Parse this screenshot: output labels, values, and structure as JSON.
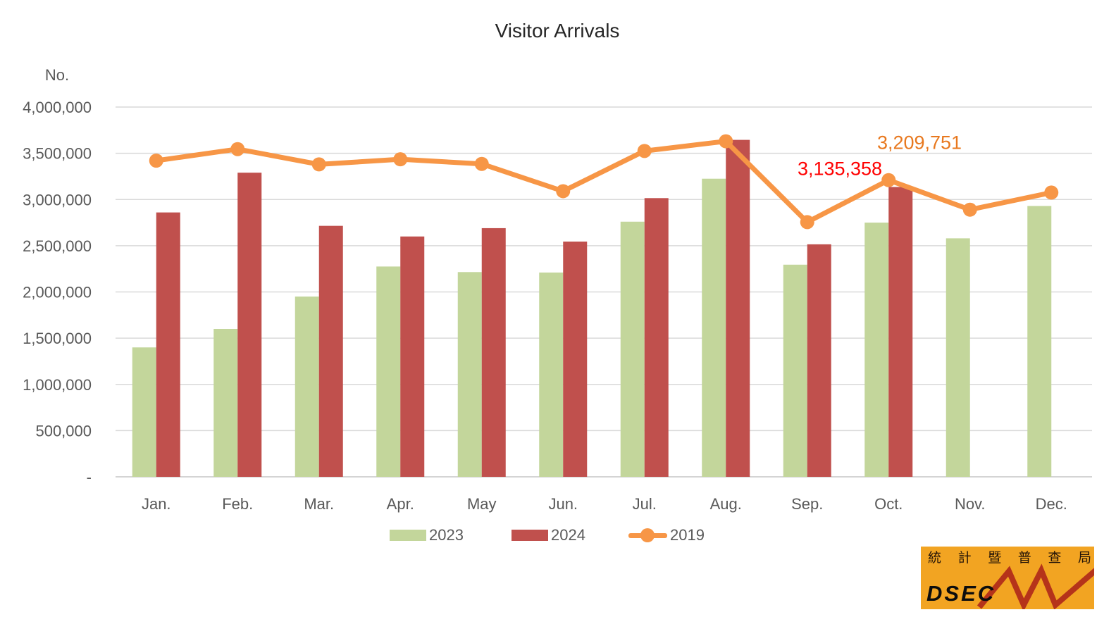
{
  "title": "Visitor Arrivals",
  "chart_data": {
    "type": "bar",
    "title": "Visitor Arrivals",
    "xlabel": "",
    "ylabel": "No.",
    "ylim": [
      0,
      4000000
    ],
    "ytick_step": 500000,
    "ytick_labels": [
      "4,000,000",
      "3,500,000",
      "3,000,000",
      "2,500,000",
      "2,000,000",
      "1,500,000",
      "1,000,000",
      "500,000",
      "-"
    ],
    "grid": true,
    "legend_position": "bottom",
    "categories": [
      "Jan.",
      "Feb.",
      "Mar.",
      "Apr.",
      "May",
      "Jun.",
      "Jul.",
      "Aug.",
      "Sep.",
      "Oct.",
      "Nov.",
      "Dec."
    ],
    "series": [
      {
        "name": "2023",
        "kind": "bar",
        "color": "#C3D69B",
        "values": [
          1400000,
          1600000,
          1950000,
          2275000,
          2215000,
          2210000,
          2760000,
          3225000,
          2295000,
          2750000,
          2580000,
          2930000
        ]
      },
      {
        "name": "2024",
        "kind": "bar",
        "color": "#C0504D",
        "values": [
          2860000,
          3290000,
          2715000,
          2600000,
          2690000,
          2545000,
          3015000,
          3645000,
          2515000,
          3135358,
          null,
          null
        ]
      },
      {
        "name": "2019",
        "kind": "line",
        "color": "#F79646",
        "values": [
          3420000,
          3545000,
          3380000,
          3435000,
          3385000,
          3090000,
          3525000,
          3630000,
          2755000,
          3209751,
          2890000,
          3075000
        ]
      }
    ],
    "annotations": [
      {
        "series": "2019",
        "category": "Oct.",
        "value": 3209751,
        "text": "3,209,751",
        "color": "#E8781E"
      },
      {
        "series": "2024",
        "category": "Oct.",
        "value": 3135358,
        "text": "3,135,358",
        "color": "#FF0000"
      }
    ],
    "axis_text_color": "#595959",
    "gridline_color": "#D9D9D9",
    "axis_line_color": "#C6C6C6"
  },
  "legend": {
    "items": [
      {
        "label": "2023",
        "marker": "box",
        "color": "#C3D69B"
      },
      {
        "label": "2024",
        "marker": "box",
        "color": "#C0504D"
      },
      {
        "label": "2019",
        "marker": "line-dot",
        "color": "#F79646"
      }
    ]
  },
  "logo": {
    "cjk_text": "統計暨普查局",
    "name": "DSEC",
    "bg_color": "#F2A422",
    "arrow_color": "#B5331A",
    "text_color": "#231307"
  }
}
